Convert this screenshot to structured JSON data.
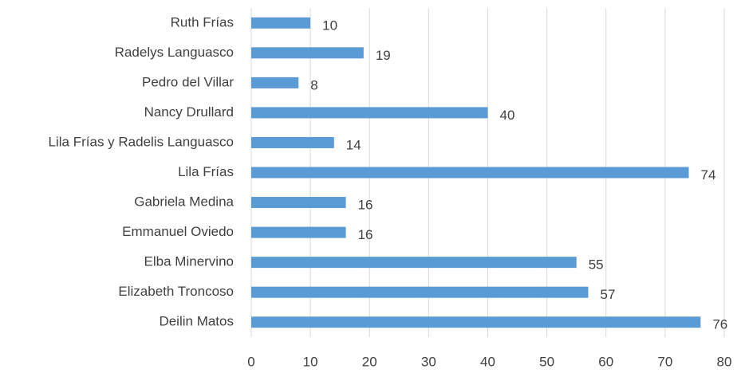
{
  "chart_data": {
    "type": "barh",
    "categories": [
      "Ruth Frías",
      "Radelys Languasco",
      "Pedro del Villar",
      "Nancy Drullard",
      "Lila Frías y Radelis Languasco",
      "Lila Frías",
      "Gabriela Medina",
      "Emmanuel Oviedo",
      "Elba Minervino",
      "Elizabeth Troncoso",
      "Deilin Matos"
    ],
    "values": [
      10,
      19,
      8,
      40,
      14,
      74,
      16,
      16,
      55,
      57,
      76
    ],
    "color": "#5b9bd5",
    "xlim": [
      0,
      80
    ],
    "xticks": [
      0,
      10,
      20,
      30,
      40,
      50,
      60,
      70,
      80
    ],
    "grid": true
  }
}
